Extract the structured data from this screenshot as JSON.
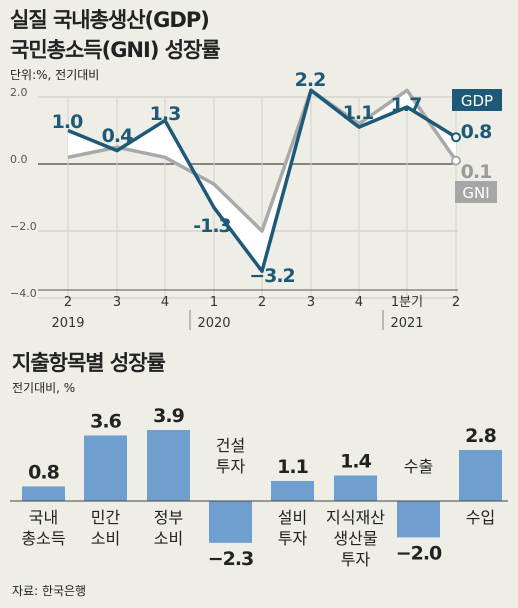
{
  "title_line1": "실질 국내총생산(GDP)",
  "title_line2": "국민총소득(GNI) 성장률",
  "unit1": "단위:%, 전기대비",
  "chart_data": [
    {
      "type": "line",
      "x": [
        "2",
        "3",
        "4",
        "1",
        "2",
        "3",
        "4",
        "1분기",
        "2"
      ],
      "year_labels": [
        "2019",
        "2020",
        "2021"
      ],
      "series": [
        {
          "name": "GDP",
          "color": "#1e5a78",
          "values": [
            1.0,
            0.4,
            1.3,
            -1.3,
            -3.2,
            2.2,
            1.1,
            1.7,
            0.8
          ],
          "labels": [
            "1.0",
            "0.4",
            "1.3",
            "-1.3",
            "−3.2",
            "2.2",
            "1.1",
            "1.7",
            "0.8"
          ]
        },
        {
          "name": "GNI",
          "color": "#a9a9a9",
          "values": [
            0.2,
            0.5,
            0.2,
            -0.6,
            -2.0,
            2.2,
            1.2,
            2.2,
            0.1
          ],
          "labels": [
            "0.1"
          ]
        }
      ],
      "yticks": [
        "2.0",
        "0.0",
        "−2.0",
        "−4.0"
      ],
      "ylim": [
        -4,
        2
      ]
    },
    {
      "type": "bar",
      "categories": [
        [
          "국내",
          "총소득"
        ],
        [
          "민간",
          "소비"
        ],
        [
          "정부",
          "소비"
        ],
        [
          "건설",
          "투자"
        ],
        [
          "설비",
          "투자"
        ],
        [
          "지식재산",
          "생산물",
          "투자"
        ],
        [
          "수출"
        ],
        [
          "수입"
        ]
      ],
      "values": [
        0.8,
        3.6,
        3.9,
        -2.3,
        1.1,
        1.4,
        -2.0,
        2.8
      ],
      "value_labels": [
        "0.8",
        "3.6",
        "3.9",
        "−2.3",
        "1.1",
        "1.4",
        "−2.0",
        "2.8"
      ],
      "color": "#6e9fcf"
    }
  ],
  "title3": "지출항목별 성장률",
  "unit2": "전기대비, %",
  "source": "자료: 한국은행"
}
